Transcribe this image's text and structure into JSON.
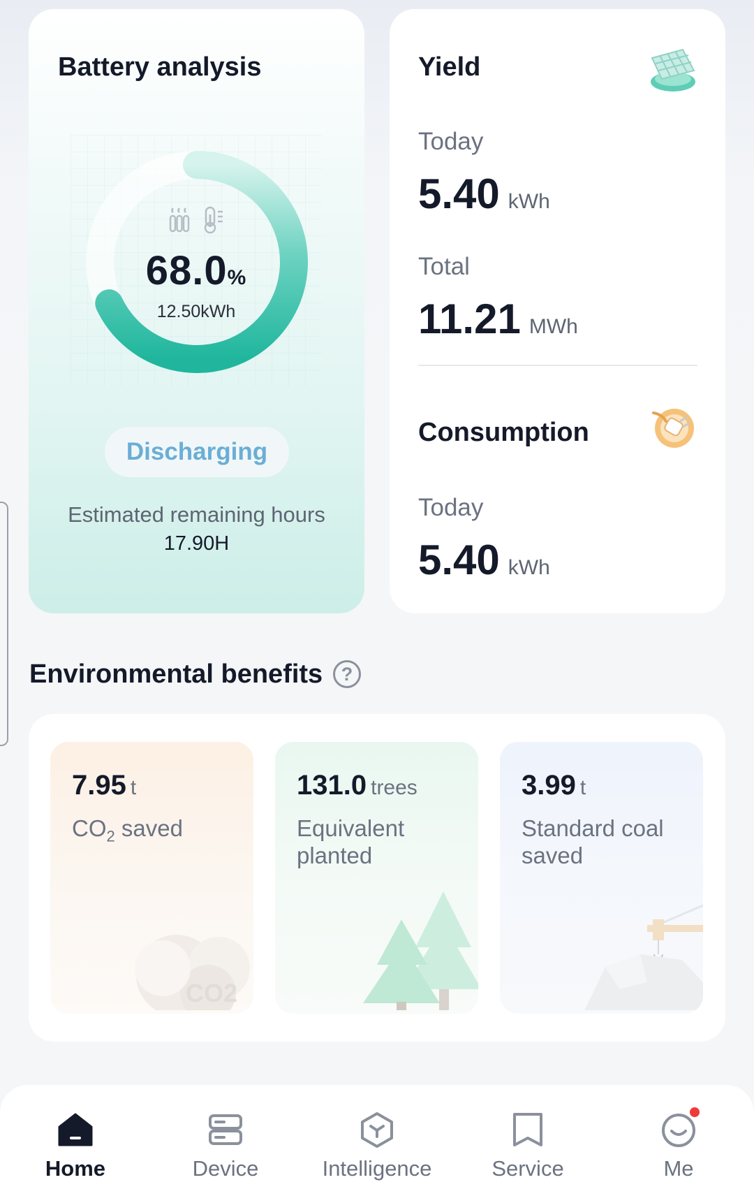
{
  "battery": {
    "title": "Battery analysis",
    "percent": "68.0",
    "percent_unit": "%",
    "soc_fraction": 0.68,
    "energy": "12.50kWh",
    "status": "Discharging",
    "remaining_label": "Estimated remaining hours",
    "remaining_value": "17.90H",
    "ring_color": "#2fbfa8"
  },
  "yield": {
    "title": "Yield",
    "today_label": "Today",
    "today_value": "5.40",
    "today_unit": "kWh",
    "total_label": "Total",
    "total_value": "11.21",
    "total_unit": "MWh"
  },
  "consumption": {
    "title": "Consumption",
    "today_label": "Today",
    "today_value": "5.40",
    "today_unit": "kWh"
  },
  "environment": {
    "title": "Environmental benefits",
    "help": "?",
    "items": [
      {
        "value": "7.95",
        "unit": "t",
        "label_pre": "CO",
        "label_sub": "2",
        "label_post": " saved",
        "badge": "CO2"
      },
      {
        "value": "131.0",
        "unit": "trees",
        "label": "Equivalent planted"
      },
      {
        "value": "3.99",
        "unit": "t",
        "label": "Standard coal saved"
      }
    ]
  },
  "nav": {
    "items": [
      {
        "label": "Home",
        "icon": "home-icon",
        "active": true
      },
      {
        "label": "Device",
        "icon": "device-icon"
      },
      {
        "label": "Intelligence",
        "icon": "intelligence-icon"
      },
      {
        "label": "Service",
        "icon": "service-icon"
      },
      {
        "label": "Me",
        "icon": "me-icon",
        "badge": true
      }
    ]
  },
  "colors": {
    "accent_teal": "#2fbfa8",
    "discharging_text": "#6aaed6",
    "notification_dot": "#f0393a"
  }
}
